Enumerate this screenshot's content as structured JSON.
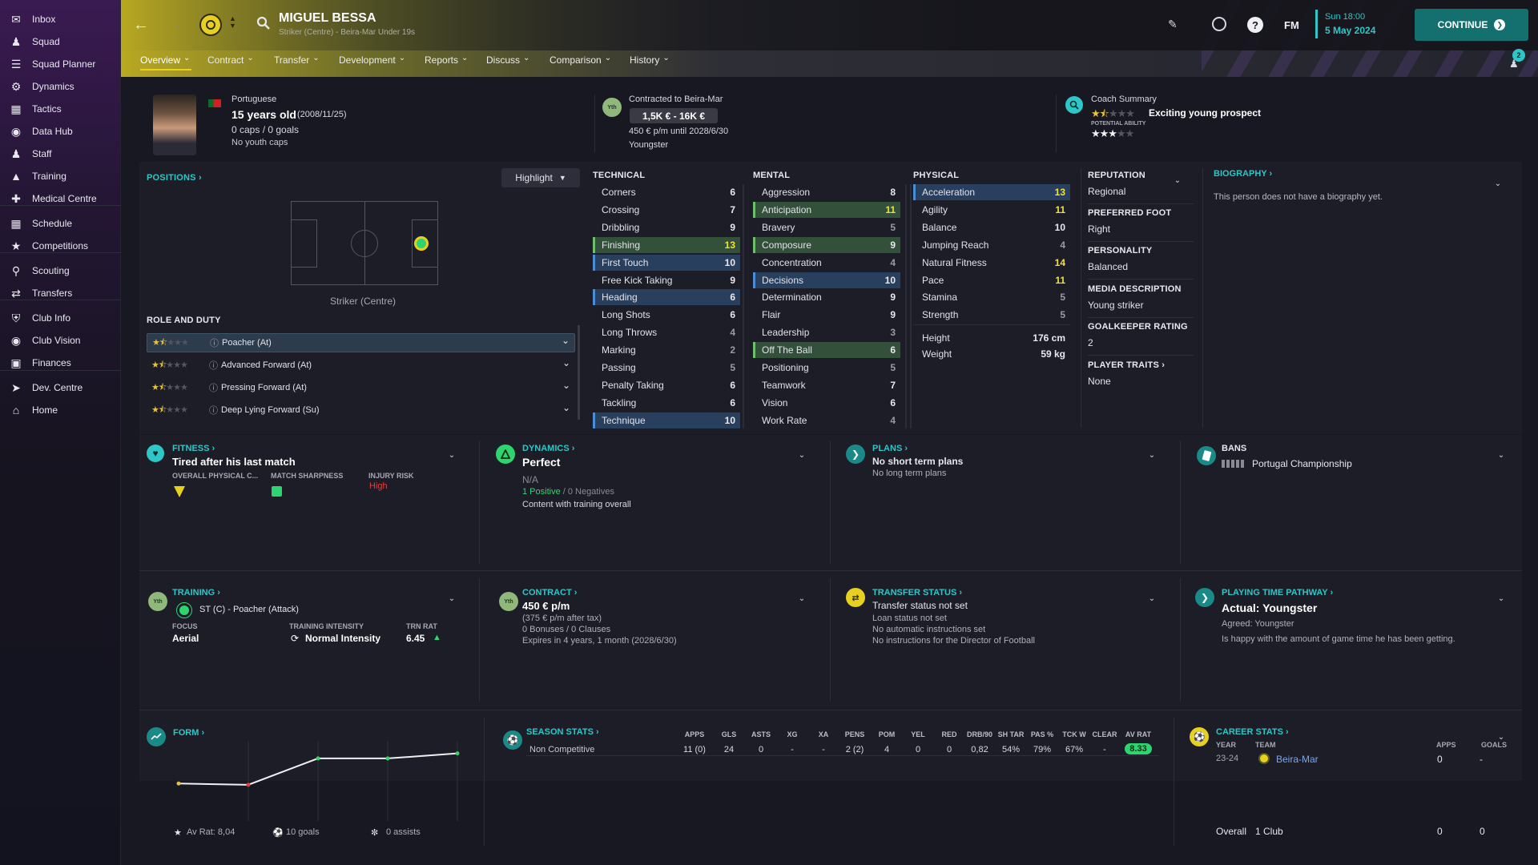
{
  "sidebar": {
    "items": [
      {
        "label": "Inbox",
        "icon": "inbox-icon"
      },
      {
        "label": "Squad",
        "icon": "squad-icon"
      },
      {
        "label": "Squad Planner",
        "icon": "planner-icon"
      },
      {
        "label": "Dynamics",
        "icon": "dynamics-icon"
      },
      {
        "label": "Tactics",
        "icon": "tactics-icon"
      },
      {
        "label": "Data Hub",
        "icon": "data-hub-icon"
      },
      {
        "label": "Staff",
        "icon": "staff-icon"
      },
      {
        "label": "Training",
        "icon": "training-icon"
      },
      {
        "label": "Medical Centre",
        "icon": "medical-icon"
      },
      {
        "label": "Schedule",
        "icon": "schedule-icon"
      },
      {
        "label": "Competitions",
        "icon": "trophy-icon"
      },
      {
        "label": "Scouting",
        "icon": "scouting-icon"
      },
      {
        "label": "Transfers",
        "icon": "transfers-icon"
      },
      {
        "label": "Club Info",
        "icon": "shield-icon"
      },
      {
        "label": "Club Vision",
        "icon": "vision-icon"
      },
      {
        "label": "Finances",
        "icon": "finances-icon"
      },
      {
        "label": "Dev. Centre",
        "icon": "dev-centre-icon"
      },
      {
        "label": "Home",
        "icon": "home-icon"
      }
    ]
  },
  "header": {
    "player_name": "MIGUEL BESSA",
    "player_sub": "Striker (Centre) - Beira-Mar Under 19s",
    "fm_label": "FM",
    "date_time": "Sun 18:00",
    "date": "5 May 2024",
    "continue_label": "CONTINUE",
    "notification_count": "2",
    "tabs": [
      "Overview",
      "Contract",
      "Transfer",
      "Development",
      "Reports",
      "Discuss",
      "Comparison",
      "History"
    ]
  },
  "profile": {
    "nationality": "Portuguese",
    "age": "15 years old",
    "dob": "(2008/11/25)",
    "caps": "0 caps / 0 goals",
    "youth_caps": "No youth caps",
    "contract_title": "Contracted to Beira-Mar",
    "value": "1,5K € - 16K €",
    "wage": "450 € p/m until 2028/6/30",
    "contract_type": "Youngster",
    "yth_badge": "Yth",
    "coach_title": "Coach Summary",
    "coach_summary": "Exciting young prospect",
    "potential_label": "POTENTIAL ABILITY",
    "current_ability_stars": 1.5,
    "potential_ability_stars": 3
  },
  "positions": {
    "title": "POSITIONS",
    "highlight_label": "Highlight",
    "position_name": "Striker (Centre)",
    "role_duty_title": "ROLE AND DUTY",
    "roles": [
      {
        "name": "Poacher (At)",
        "stars": 1.5
      },
      {
        "name": "Advanced Forward (At)",
        "stars": 1.5
      },
      {
        "name": "Pressing Forward (At)",
        "stars": 1.5
      },
      {
        "name": "Deep Lying Forward (Su)",
        "stars": 1.5
      }
    ]
  },
  "attributes": {
    "technical_title": "TECHNICAL",
    "mental_title": "MENTAL",
    "physical_title": "PHYSICAL",
    "technical": [
      {
        "name": "Corners",
        "value": "6",
        "hl": "",
        "vc": "v-w"
      },
      {
        "name": "Crossing",
        "value": "7",
        "hl": "",
        "vc": "v-w"
      },
      {
        "name": "Dribbling",
        "value": "9",
        "hl": "",
        "vc": "v-w"
      },
      {
        "name": "Finishing",
        "value": "13",
        "hl": "hl-green",
        "vc": "v-y"
      },
      {
        "name": "First Touch",
        "value": "10",
        "hl": "hl-blue",
        "vc": "v-w"
      },
      {
        "name": "Free Kick Taking",
        "value": "9",
        "hl": "",
        "vc": "v-w"
      },
      {
        "name": "Heading",
        "value": "6",
        "hl": "hl-blue",
        "vc": "v-w"
      },
      {
        "name": "Long Shots",
        "value": "6",
        "hl": "",
        "vc": "v-w"
      },
      {
        "name": "Long Throws",
        "value": "4",
        "hl": "",
        "vc": "v-gr"
      },
      {
        "name": "Marking",
        "value": "2",
        "hl": "",
        "vc": "v-gr"
      },
      {
        "name": "Passing",
        "value": "5",
        "hl": "",
        "vc": "v-gr"
      },
      {
        "name": "Penalty Taking",
        "value": "6",
        "hl": "",
        "vc": "v-w"
      },
      {
        "name": "Tackling",
        "value": "6",
        "hl": "",
        "vc": "v-w"
      },
      {
        "name": "Technique",
        "value": "10",
        "hl": "hl-blue",
        "vc": "v-w"
      }
    ],
    "mental": [
      {
        "name": "Aggression",
        "value": "8",
        "hl": "",
        "vc": "v-w"
      },
      {
        "name": "Anticipation",
        "value": "11",
        "hl": "hl-green",
        "vc": "v-y"
      },
      {
        "name": "Bravery",
        "value": "5",
        "hl": "",
        "vc": "v-gr"
      },
      {
        "name": "Composure",
        "value": "9",
        "hl": "hl-green",
        "vc": "v-w"
      },
      {
        "name": "Concentration",
        "value": "4",
        "hl": "",
        "vc": "v-gr"
      },
      {
        "name": "Decisions",
        "value": "10",
        "hl": "hl-blue",
        "vc": "v-w"
      },
      {
        "name": "Determination",
        "value": "9",
        "hl": "",
        "vc": "v-w"
      },
      {
        "name": "Flair",
        "value": "9",
        "hl": "",
        "vc": "v-w"
      },
      {
        "name": "Leadership",
        "value": "3",
        "hl": "",
        "vc": "v-gr"
      },
      {
        "name": "Off The Ball",
        "value": "6",
        "hl": "hl-green",
        "vc": "v-w"
      },
      {
        "name": "Positioning",
        "value": "5",
        "hl": "",
        "vc": "v-gr"
      },
      {
        "name": "Teamwork",
        "value": "7",
        "hl": "",
        "vc": "v-w"
      },
      {
        "name": "Vision",
        "value": "6",
        "hl": "",
        "vc": "v-w"
      },
      {
        "name": "Work Rate",
        "value": "4",
        "hl": "",
        "vc": "v-gr"
      }
    ],
    "physical": [
      {
        "name": "Acceleration",
        "value": "13",
        "hl": "hl-blue",
        "vc": "v-y"
      },
      {
        "name": "Agility",
        "value": "11",
        "hl": "",
        "vc": "v-y"
      },
      {
        "name": "Balance",
        "value": "10",
        "hl": "",
        "vc": "v-w"
      },
      {
        "name": "Jumping Reach",
        "value": "4",
        "hl": "",
        "vc": "v-gr"
      },
      {
        "name": "Natural Fitness",
        "value": "14",
        "hl": "",
        "vc": "v-y"
      },
      {
        "name": "Pace",
        "value": "11",
        "hl": "",
        "vc": "v-y"
      },
      {
        "name": "Stamina",
        "value": "5",
        "hl": "",
        "vc": "v-gr"
      },
      {
        "name": "Strength",
        "value": "5",
        "hl": "",
        "vc": "v-gr"
      }
    ],
    "height_label": "Height",
    "height": "176 cm",
    "weight_label": "Weight",
    "weight": "59 kg"
  },
  "info": {
    "reputation_label": "REPUTATION",
    "reputation": "Regional",
    "foot_label": "PREFERRED FOOT",
    "foot": "Right",
    "personality_label": "PERSONALITY",
    "personality": "Balanced",
    "media_label": "MEDIA DESCRIPTION",
    "media": "Young striker",
    "gk_label": "GOALKEEPER RATING",
    "gk": "2",
    "traits_label": "PLAYER TRAITS",
    "traits": "None",
    "bio_title": "BIOGRAPHY",
    "bio": "This person does not have a biography yet."
  },
  "fitness": {
    "title": "FITNESS",
    "status": "Tired after his last match",
    "opc_label": "OVERALL PHYSICAL C...",
    "sharp_label": "MATCH SHARPNESS",
    "injury_label": "INJURY RISK",
    "injury": "High"
  },
  "dynamics": {
    "title": "DYNAMICS",
    "status": "Perfect",
    "na": "N/A",
    "positive": "1 Positive",
    "sep": " / ",
    "negatives": "0 Negatives",
    "content": "Content with training overall"
  },
  "plans": {
    "title": "PLANS",
    "line1": "No short term plans",
    "line2": "No long term plans"
  },
  "bans": {
    "title": "BANS",
    "comp": "Portugal Championship"
  },
  "training": {
    "title": "TRAINING",
    "role": "ST (C) - Poacher (Attack)",
    "focus_label": "FOCUS",
    "focus": "Aerial",
    "intensity_label": "TRAINING INTENSITY",
    "intensity": "Normal Intensity",
    "trn_label": "TRN RAT",
    "trn": "6.45"
  },
  "contract": {
    "title": "CONTRACT",
    "wage": "450 € p/m",
    "after_tax": "(375 € p/m after tax)",
    "bonuses": "0 Bonuses / 0 Clauses",
    "expires": "Expires in 4 years, 1 month (2028/6/30)"
  },
  "transfer": {
    "title": "TRANSFER STATUS",
    "line1": "Transfer status not set",
    "line2": "Loan status not set",
    "line3": "No automatic instructions set",
    "line4": "No instructions for the Director of Football"
  },
  "pathway": {
    "title": "PLAYING TIME PATHWAY",
    "status": "Actual: Youngster",
    "agreed": "Agreed: Youngster",
    "note": "Is happy with the amount of game time he has been getting."
  },
  "form": {
    "title": "FORM",
    "av_rat": "Av Rat: 8,04",
    "goals": "10 goals",
    "assists": "0 assists"
  },
  "chart_data": {
    "type": "line",
    "x": [
      1,
      2,
      3,
      4,
      5
    ],
    "values": [
      7.3,
      7.25,
      8.3,
      8.3,
      8.5
    ],
    "ylim": [
      6,
      9
    ],
    "title": "FORM",
    "colors": [
      "#e8c23a",
      "#e04040",
      "#3ad36a",
      "#3ad36a",
      "#3ad36a"
    ]
  },
  "season_stats": {
    "title": "SEASON STATS",
    "headers": [
      "APPS",
      "GLS",
      "ASTS",
      "XG",
      "XA",
      "PENS",
      "POM",
      "YEL",
      "RED",
      "DRB/90",
      "SH TAR",
      "PAS %",
      "TCK W",
      "CLEAR",
      "AV RAT"
    ],
    "row_label": "Non Competitive",
    "row": [
      "11 (0)",
      "24",
      "0",
      "-",
      "-",
      "2 (2)",
      "4",
      "0",
      "0",
      "0,82",
      "54%",
      "79%",
      "67%",
      "-",
      "8.33"
    ]
  },
  "career_stats": {
    "title": "CAREER STATS",
    "year_label": "YEAR",
    "team_label": "TEAM",
    "apps_label": "APPS",
    "goals_label": "GOALS",
    "year": "23-24",
    "team": "Beira-Mar",
    "apps": "0",
    "goals": "-",
    "overall_label": "Overall",
    "clubs": "1 Club",
    "overall_apps": "0",
    "overall_goals": "0"
  },
  "colors": {
    "accent": "#2ec6c6",
    "gold": "#e8c23a",
    "green": "#6ad96a",
    "yellow": "#f0e13c",
    "continue_btn": "#14706e"
  }
}
